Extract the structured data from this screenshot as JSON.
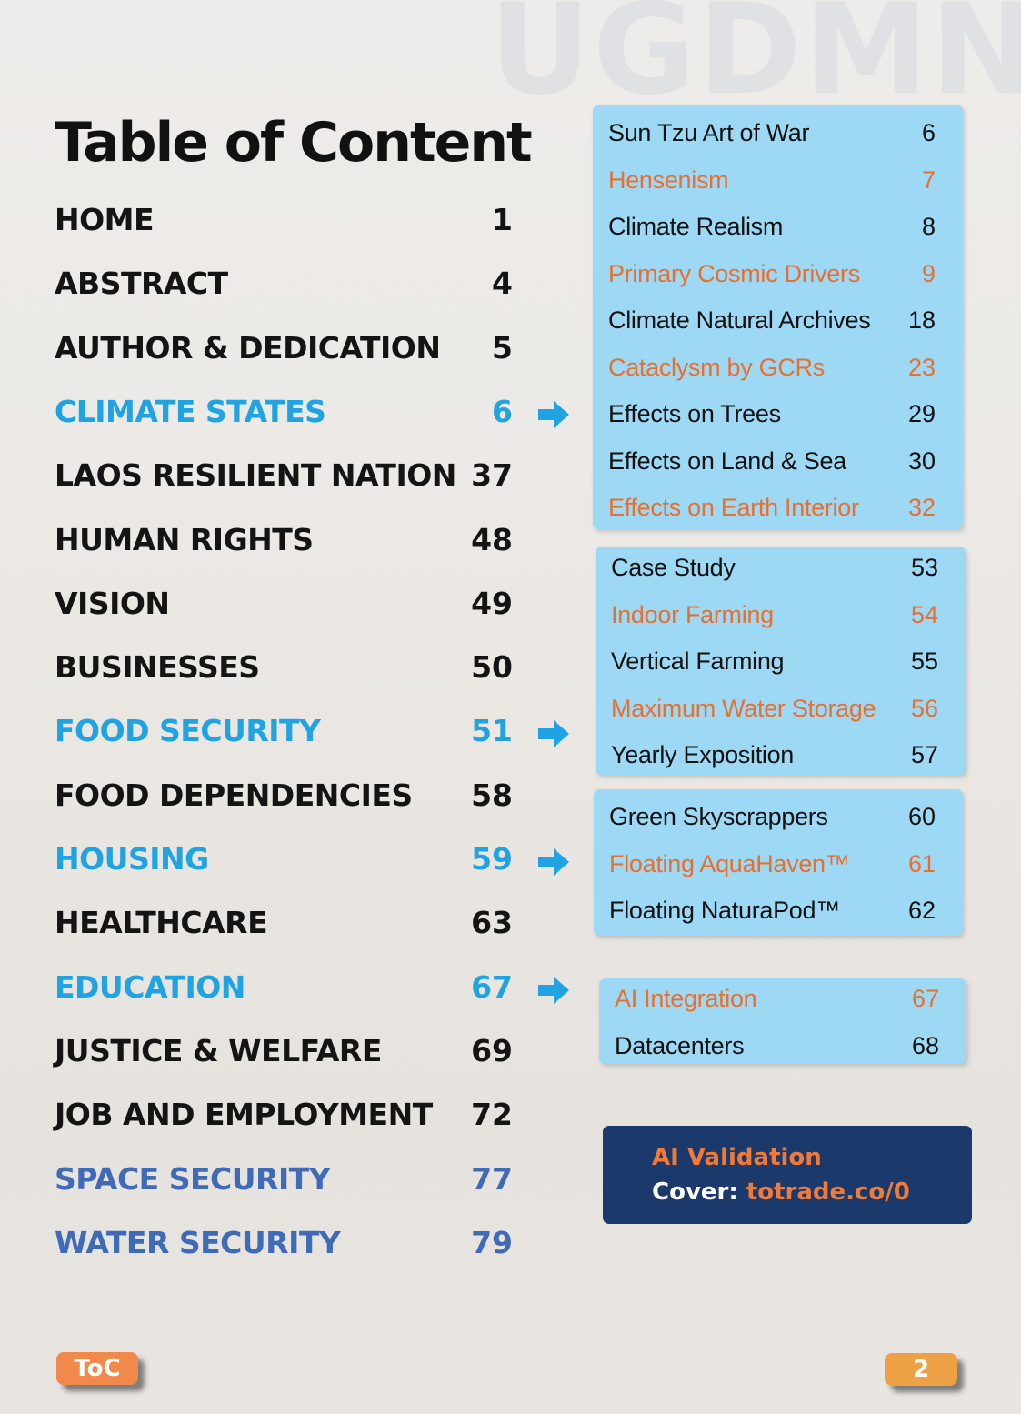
{
  "watermark": "UGDMN",
  "title": "Table of Content",
  "toc": [
    {
      "label": "HOME",
      "page": "1",
      "style": "normal"
    },
    {
      "label": "ABSTRACT",
      "page": "4",
      "style": "normal"
    },
    {
      "label": "AUTHOR & DEDICATION",
      "page": "5",
      "style": "normal"
    },
    {
      "label": "CLIMATE STATES",
      "page": "6",
      "style": "highlight",
      "arrow": true
    },
    {
      "label": "LAOS RESILIENT NATION",
      "page": "37",
      "style": "normal"
    },
    {
      "label": "HUMAN RIGHTS",
      "page": "48",
      "style": "normal"
    },
    {
      "label": "VISION",
      "page": "49",
      "style": "normal"
    },
    {
      "label": "BUSINESSES",
      "page": "50",
      "style": "normal"
    },
    {
      "label": "FOOD SECURITY",
      "page": "51",
      "style": "highlight",
      "arrow": true
    },
    {
      "label": "FOOD DEPENDENCIES",
      "page": "58",
      "style": "normal"
    },
    {
      "label": "HOUSING",
      "page": "59",
      "style": "highlight",
      "arrow": true
    },
    {
      "label": "HEALTHCARE",
      "page": "63",
      "style": "normal"
    },
    {
      "label": "EDUCATION",
      "page": "67",
      "style": "highlight",
      "arrow": true
    },
    {
      "label": "JUSTICE & WELFARE",
      "page": "69",
      "style": "normal"
    },
    {
      "label": "JOB AND EMPLOYMENT",
      "page": "72",
      "style": "normal"
    },
    {
      "label": "SPACE SECURITY",
      "page": "77",
      "style": "secondary"
    },
    {
      "label": "WATER SECURITY",
      "page": "79",
      "style": "secondary"
    }
  ],
  "panels": [
    {
      "id": "climate",
      "items": [
        {
          "label": "Sun Tzu Art of War",
          "page": "6",
          "color": "black"
        },
        {
          "label": "Hensenism",
          "page": "7",
          "color": "orange"
        },
        {
          "label": "Climate Realism",
          "page": "8",
          "color": "black"
        },
        {
          "label": "Primary Cosmic Drivers",
          "page": "9",
          "color": "orange"
        },
        {
          "label": "Climate Natural Archives",
          "page": "18",
          "color": "black"
        },
        {
          "label": "Cataclysm by GCRs",
          "page": "23",
          "color": "orange"
        },
        {
          "label": "Effects on Trees",
          "page": "29",
          "color": "black"
        },
        {
          "label": "Effects on Land & Sea",
          "page": "30",
          "color": "black"
        },
        {
          "label": "Effects on Earth Interior",
          "page": "32",
          "color": "orange"
        }
      ]
    },
    {
      "id": "food",
      "items": [
        {
          "label": "Case Study",
          "page": "53",
          "color": "black"
        },
        {
          "label": "Indoor Farming",
          "page": "54",
          "color": "orange"
        },
        {
          "label": "Vertical Farming",
          "page": "55",
          "color": "black"
        },
        {
          "label": "Maximum Water Storage",
          "page": "56",
          "color": "orange"
        },
        {
          "label": "Yearly Exposition",
          "page": "57",
          "color": "black"
        }
      ]
    },
    {
      "id": "housing",
      "items": [
        {
          "label": "Green Skyscrappers",
          "page": "60",
          "color": "black"
        },
        {
          "label": "Floating AquaHaven™",
          "page": "61",
          "color": "orange"
        },
        {
          "label": "Floating NaturaPod™",
          "page": "62",
          "color": "black"
        }
      ]
    },
    {
      "id": "education",
      "items": [
        {
          "label": "AI Integration",
          "page": "67",
          "color": "orange"
        },
        {
          "label": "Datacenters",
          "page": "68",
          "color": "black"
        }
      ]
    }
  ],
  "validation": {
    "title": "AI Validation",
    "cover_label": "Cover:",
    "cover_url": "totrade.co/0"
  },
  "footer": {
    "toc_badge": "ToC",
    "page_number": "2"
  },
  "colors": {
    "highlight_blue": "#1fa3e3",
    "secondary_blue": "#3f6ab7",
    "accent_orange": "#e7702f",
    "panel_blue": "#9dd8f5",
    "validation_navy": "#1b3a6b"
  }
}
